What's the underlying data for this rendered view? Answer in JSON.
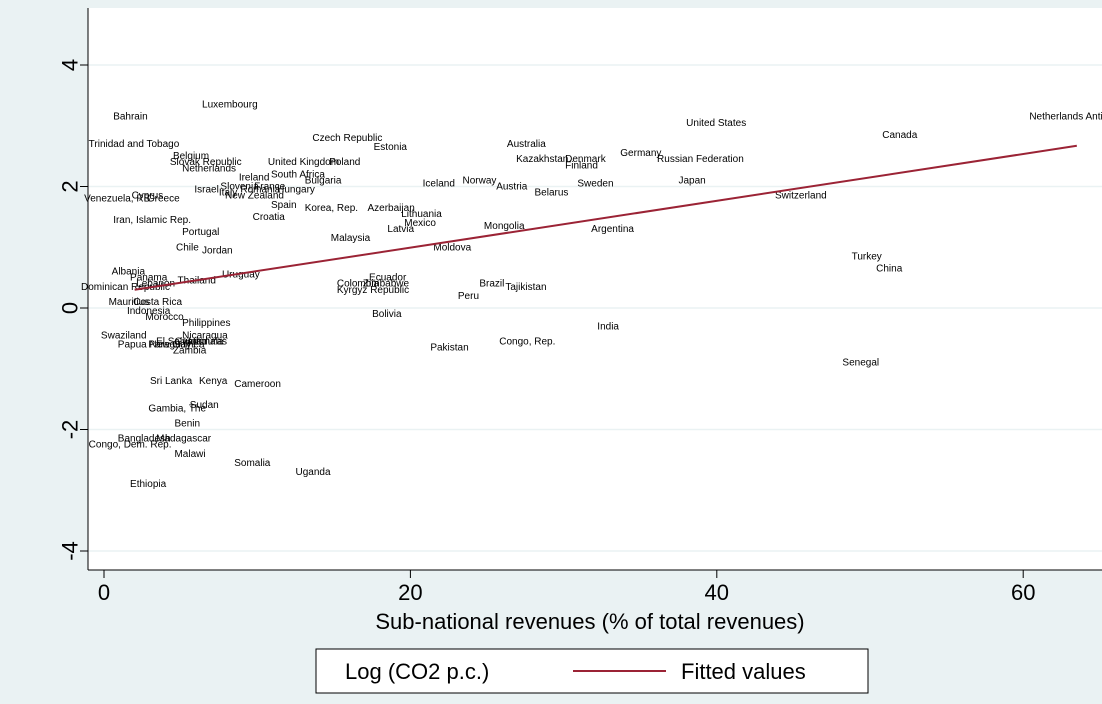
{
  "chart_data": {
    "type": "scatter",
    "xlabel": "Sub-national revenues (% of total revenues)",
    "ylabel": "",
    "xlim": [
      -1,
      64.5
    ],
    "ylim": [
      -4.4,
      5
    ],
    "x_ticks": [
      0,
      20,
      40,
      60
    ],
    "y_ticks": [
      -4,
      -2,
      0,
      2,
      4
    ],
    "grid": "horizontal",
    "legend_position": "bottom",
    "colors": {
      "fit_line": "#9b2335",
      "background": "#eaf2f3",
      "plot_bg": "#ffffff",
      "grid": "#eaf2f3"
    },
    "series": [
      {
        "name": "Log (CO2 p.c.)",
        "marker": "label-only",
        "points": [
          {
            "label": "Luxembourg",
            "x": 6.4,
            "y": 3.3
          },
          {
            "label": "Bahrain",
            "x": 0.6,
            "y": 3.1
          },
          {
            "label": "Trinidad and Tobago",
            "x": -1.0,
            "y": 2.65
          },
          {
            "label": "Belgium",
            "x": 4.5,
            "y": 2.45
          },
          {
            "label": "Slovak Republic",
            "x": 4.3,
            "y": 2.35
          },
          {
            "label": "Netherlands",
            "x": 5.1,
            "y": 2.25
          },
          {
            "label": "United Kingdom",
            "x": 10.7,
            "y": 2.35
          },
          {
            "label": "Poland",
            "x": 14.7,
            "y": 2.35
          },
          {
            "label": "South Africa",
            "x": 10.9,
            "y": 2.15
          },
          {
            "label": "Ireland",
            "x": 8.8,
            "y": 2.1
          },
          {
            "label": "Bulgaria",
            "x": 13.1,
            "y": 2.05
          },
          {
            "label": "Czech Republic",
            "x": 13.6,
            "y": 2.75
          },
          {
            "label": "Estonia",
            "x": 17.6,
            "y": 2.6
          },
          {
            "label": "Slovenia",
            "x": 7.6,
            "y": 1.95
          },
          {
            "label": "France",
            "x": 9.8,
            "y": 1.95
          },
          {
            "label": "Romania",
            "x": 8.9,
            "y": 1.9
          },
          {
            "label": "Hungary",
            "x": 11.3,
            "y": 1.9
          },
          {
            "label": "Israel",
            "x": 5.9,
            "y": 1.9
          },
          {
            "label": "Italy",
            "x": 7.5,
            "y": 1.85
          },
          {
            "label": "New Zealand",
            "x": 7.9,
            "y": 1.8
          },
          {
            "label": "Cyprus",
            "x": 1.8,
            "y": 1.8
          },
          {
            "label": "Venezuela, RB",
            "x": -1.3,
            "y": 1.75
          },
          {
            "label": "Greece",
            "x": 2.8,
            "y": 1.75
          },
          {
            "label": "Spain",
            "x": 10.9,
            "y": 1.65
          },
          {
            "label": "Korea, Rep.",
            "x": 13.1,
            "y": 1.6
          },
          {
            "label": "Azerbaijan",
            "x": 17.2,
            "y": 1.6
          },
          {
            "label": "Croatia",
            "x": 9.7,
            "y": 1.45
          },
          {
            "label": "Lithuania",
            "x": 19.4,
            "y": 1.5
          },
          {
            "label": "Mexico",
            "x": 19.6,
            "y": 1.35
          },
          {
            "label": "Latvia",
            "x": 18.5,
            "y": 1.25
          },
          {
            "label": "Iran, Islamic Rep.",
            "x": 0.6,
            "y": 1.4
          },
          {
            "label": "Portugal",
            "x": 5.1,
            "y": 1.2
          },
          {
            "label": "Malaysia",
            "x": 14.8,
            "y": 1.1
          },
          {
            "label": "Chile",
            "x": 4.7,
            "y": 0.95
          },
          {
            "label": "Jordan",
            "x": 6.4,
            "y": 0.9
          },
          {
            "label": "Moldova",
            "x": 21.5,
            "y": 0.95
          },
          {
            "label": "Australia",
            "x": 26.3,
            "y": 2.65
          },
          {
            "label": "Kazakhstan",
            "x": 26.9,
            "y": 2.4
          },
          {
            "label": "Denmark",
            "x": 30.1,
            "y": 2.4
          },
          {
            "label": "Finland",
            "x": 30.1,
            "y": 2.3
          },
          {
            "label": "Germany",
            "x": 33.7,
            "y": 2.5
          },
          {
            "label": "Russian Federation",
            "x": 36.1,
            "y": 2.4
          },
          {
            "label": "Iceland",
            "x": 20.8,
            "y": 2.0
          },
          {
            "label": "Norway",
            "x": 23.4,
            "y": 2.05
          },
          {
            "label": "Austria",
            "x": 25.6,
            "y": 1.95
          },
          {
            "label": "Sweden",
            "x": 30.9,
            "y": 2.0
          },
          {
            "label": "Belarus",
            "x": 28.1,
            "y": 1.85
          },
          {
            "label": "Japan",
            "x": 37.5,
            "y": 2.05
          },
          {
            "label": "United States",
            "x": 38.0,
            "y": 3.0
          },
          {
            "label": "Canada",
            "x": 50.8,
            "y": 2.8
          },
          {
            "label": "Netherlands Antilles",
            "x": 60.4,
            "y": 3.1
          },
          {
            "label": "Switzerland",
            "x": 43.8,
            "y": 1.8
          },
          {
            "label": "Mongolia",
            "x": 24.8,
            "y": 1.3
          },
          {
            "label": "Argentina",
            "x": 31.8,
            "y": 1.25
          },
          {
            "label": "Turkey",
            "x": 48.8,
            "y": 0.8
          },
          {
            "label": "China",
            "x": 50.4,
            "y": 0.6
          },
          {
            "label": "Albania",
            "x": 0.5,
            "y": 0.55
          },
          {
            "label": "Panama",
            "x": 1.7,
            "y": 0.45
          },
          {
            "label": "Lebanon",
            "x": 2.1,
            "y": 0.35
          },
          {
            "label": "Thailand",
            "x": 4.8,
            "y": 0.4
          },
          {
            "label": "Uruguay",
            "x": 7.7,
            "y": 0.5
          },
          {
            "label": "Dominican Republic",
            "x": -1.5,
            "y": 0.3
          },
          {
            "label": "Ecuador",
            "x": 17.3,
            "y": 0.45
          },
          {
            "label": "Colombia",
            "x": 15.2,
            "y": 0.35
          },
          {
            "label": "Zimbabwe",
            "x": 16.9,
            "y": 0.35
          },
          {
            "label": "Kyrgyz Republic",
            "x": 15.2,
            "y": 0.25
          },
          {
            "label": "Brazil",
            "x": 24.5,
            "y": 0.35
          },
          {
            "label": "Tajikistan",
            "x": 26.2,
            "y": 0.3
          },
          {
            "label": "Peru",
            "x": 23.1,
            "y": 0.15
          },
          {
            "label": "Mauritius",
            "x": 0.3,
            "y": 0.05
          },
          {
            "label": "Costa Rica",
            "x": 1.9,
            "y": 0.05
          },
          {
            "label": "Indonesia",
            "x": 1.5,
            "y": -0.1
          },
          {
            "label": "Morocco",
            "x": 2.7,
            "y": -0.2
          },
          {
            "label": "Bolivia",
            "x": 17.5,
            "y": -0.15
          },
          {
            "label": "Philippines",
            "x": 5.1,
            "y": -0.3
          },
          {
            "label": "India",
            "x": 32.2,
            "y": -0.35
          },
          {
            "label": "Swaziland",
            "x": -0.2,
            "y": -0.5
          },
          {
            "label": "Nicaragua",
            "x": 5.1,
            "y": -0.5
          },
          {
            "label": "El Salvador",
            "x": 3.4,
            "y": -0.6
          },
          {
            "label": "Guatemala",
            "x": 4.6,
            "y": -0.6
          },
          {
            "label": "Honduras",
            "x": 5.2,
            "y": -0.6
          },
          {
            "label": "Papua New Guinea",
            "x": 0.9,
            "y": -0.65
          },
          {
            "label": "Paraguay",
            "x": 2.9,
            "y": -0.65
          },
          {
            "label": "Zambia",
            "x": 4.5,
            "y": -0.75
          },
          {
            "label": "Congo, Rep.",
            "x": 25.8,
            "y": -0.6
          },
          {
            "label": "Pakistan",
            "x": 21.3,
            "y": -0.7
          },
          {
            "label": "Senegal",
            "x": 48.2,
            "y": -0.95
          },
          {
            "label": "Sri Lanka",
            "x": 3.0,
            "y": -1.25
          },
          {
            "label": "Kenya",
            "x": 6.2,
            "y": -1.25
          },
          {
            "label": "Cameroon",
            "x": 8.5,
            "y": -1.3
          },
          {
            "label": "Sudan",
            "x": 5.6,
            "y": -1.65
          },
          {
            "label": "Gambia, The",
            "x": 2.9,
            "y": -1.7
          },
          {
            "label": "Benin",
            "x": 4.6,
            "y": -1.95
          },
          {
            "label": "Bangladesh",
            "x": 0.9,
            "y": -2.2
          },
          {
            "label": "Madagascar",
            "x": 3.4,
            "y": -2.2
          },
          {
            "label": "Congo, Dem. Rep.",
            "x": -1.0,
            "y": -2.3
          },
          {
            "label": "Malawi",
            "x": 4.6,
            "y": -2.45
          },
          {
            "label": "Somalia",
            "x": 8.5,
            "y": -2.6
          },
          {
            "label": "Uganda",
            "x": 12.5,
            "y": -2.75
          },
          {
            "label": "Ethiopia",
            "x": 1.7,
            "y": -2.95
          }
        ]
      },
      {
        "name": "Fitted values",
        "type": "line",
        "color": "#9b2335",
        "x": [
          2,
          63.5
        ],
        "y": [
          0.3,
          2.67
        ]
      }
    ]
  }
}
